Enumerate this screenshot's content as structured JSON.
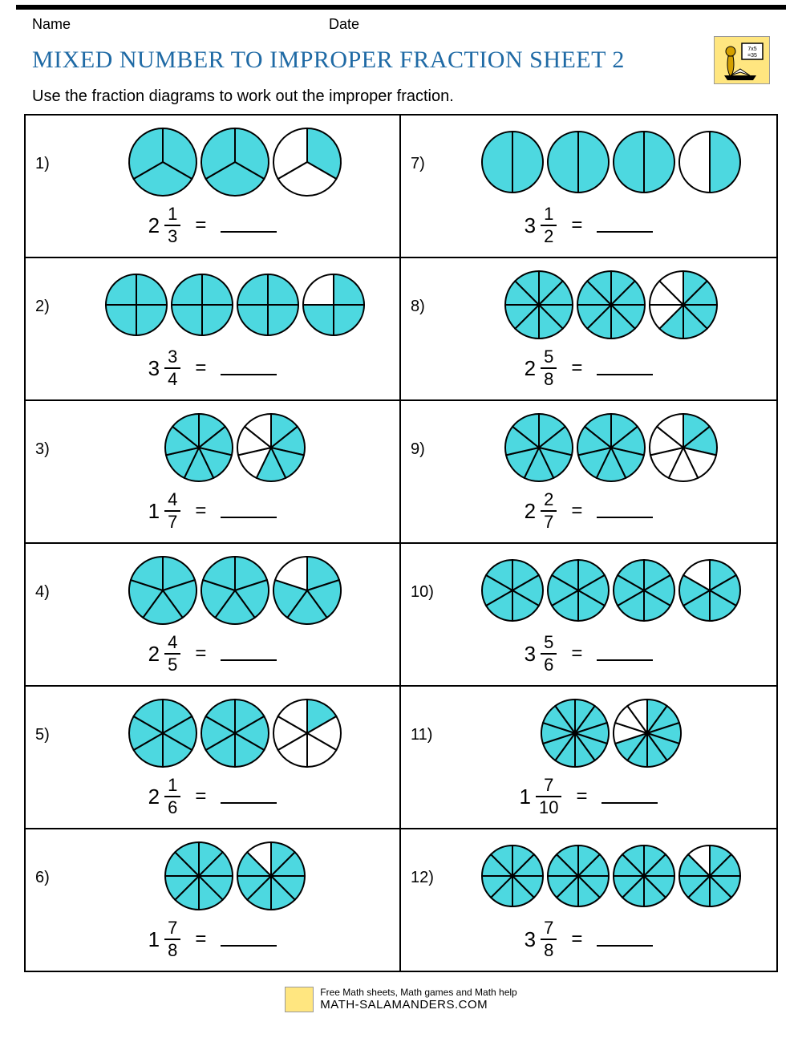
{
  "header": {
    "name_label": "Name",
    "date_label": "Date"
  },
  "title": "MIXED NUMBER TO IMPROPER FRACTION SHEET 2",
  "instruction": "Use the fraction diagrams to work out the improper fraction.",
  "colors": {
    "fill": "#4dd8e0",
    "stroke": "#000000",
    "title": "#1f6aa5",
    "logo_bg": "#ffe680"
  },
  "circle_radius": 42,
  "problems": [
    {
      "n": "1)",
      "whole": "2",
      "num": "1",
      "den": "3",
      "slices": 3,
      "circles": [
        3,
        3,
        1
      ]
    },
    {
      "n": "7)",
      "whole": "3",
      "num": "1",
      "den": "2",
      "slices": 2,
      "circles": [
        2,
        2,
        2,
        1
      ]
    },
    {
      "n": "2)",
      "whole": "3",
      "num": "3",
      "den": "4",
      "slices": 4,
      "circles": [
        4,
        4,
        4,
        3
      ]
    },
    {
      "n": "8)",
      "whole": "2",
      "num": "5",
      "den": "8",
      "slices": 8,
      "circles": [
        8,
        8,
        5
      ]
    },
    {
      "n": "3)",
      "whole": "1",
      "num": "4",
      "den": "7",
      "slices": 7,
      "circles": [
        7,
        4
      ]
    },
    {
      "n": "9)",
      "whole": "2",
      "num": "2",
      "den": "7",
      "slices": 7,
      "circles": [
        7,
        7,
        2
      ]
    },
    {
      "n": "4)",
      "whole": "2",
      "num": "4",
      "den": "5",
      "slices": 5,
      "circles": [
        5,
        5,
        4
      ]
    },
    {
      "n": "10)",
      "whole": "3",
      "num": "5",
      "den": "6",
      "slices": 6,
      "circles": [
        6,
        6,
        6,
        5
      ]
    },
    {
      "n": "5)",
      "whole": "2",
      "num": "1",
      "den": "6",
      "slices": 6,
      "circles": [
        6,
        6,
        1
      ]
    },
    {
      "n": "11)",
      "whole": "1",
      "num": "7",
      "den": "10",
      "slices": 10,
      "circles": [
        10,
        7
      ]
    },
    {
      "n": "6)",
      "whole": "1",
      "num": "7",
      "den": "8",
      "slices": 8,
      "circles": [
        8,
        7
      ]
    },
    {
      "n": "12)",
      "whole": "3",
      "num": "7",
      "den": "8",
      "slices": 8,
      "circles": [
        8,
        8,
        8,
        7
      ]
    }
  ],
  "equals": "=",
  "footer": {
    "line1": "Free Math sheets, Math games and Math help",
    "line2": "MATH-SALAMANDERS.COM"
  }
}
